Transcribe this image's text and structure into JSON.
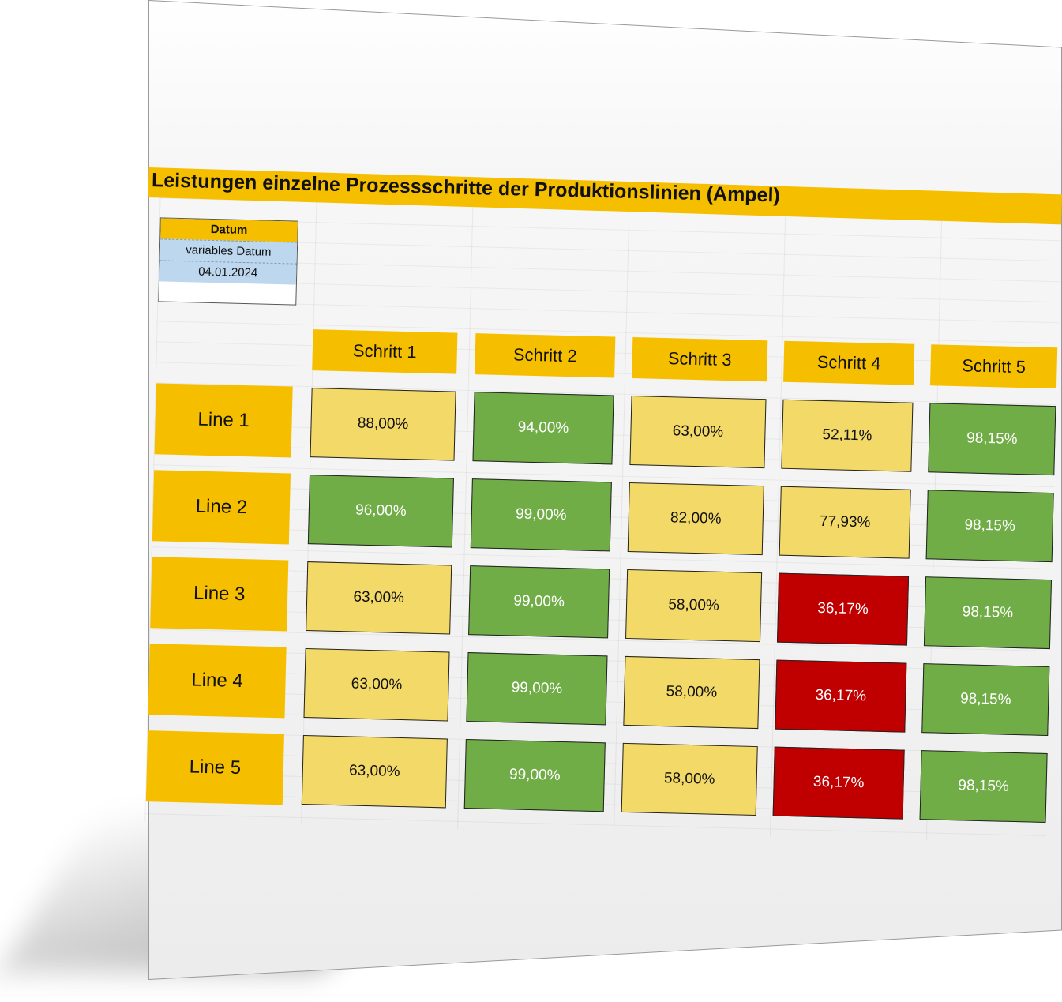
{
  "title": "Leistungen einzelne Prozessschritte der Produktionslinien (Ampel)",
  "date_box": {
    "header": "Datum",
    "label": "variables Datum",
    "value": "04.01.2024"
  },
  "steps": [
    "Schritt 1",
    "Schritt 2",
    "Schritt 3",
    "Schritt 4",
    "Schritt 5"
  ],
  "lines": [
    {
      "label": "Line 1",
      "values": [
        "88,00%",
        "94,00%",
        "63,00%",
        "52,11%",
        "98,15%"
      ],
      "status": [
        "yellow",
        "green",
        "yellow",
        "yellow",
        "green"
      ]
    },
    {
      "label": "Line 2",
      "values": [
        "96,00%",
        "99,00%",
        "82,00%",
        "77,93%",
        "98,15%"
      ],
      "status": [
        "green",
        "green",
        "yellow",
        "yellow",
        "green"
      ]
    },
    {
      "label": "Line 3",
      "values": [
        "63,00%",
        "99,00%",
        "58,00%",
        "36,17%",
        "98,15%"
      ],
      "status": [
        "yellow",
        "green",
        "yellow",
        "red",
        "green"
      ]
    },
    {
      "label": "Line 4",
      "values": [
        "63,00%",
        "99,00%",
        "58,00%",
        "36,17%",
        "98,15%"
      ],
      "status": [
        "yellow",
        "green",
        "yellow",
        "red",
        "green"
      ]
    },
    {
      "label": "Line 5",
      "values": [
        "63,00%",
        "99,00%",
        "58,00%",
        "36,17%",
        "98,15%"
      ],
      "status": [
        "yellow",
        "green",
        "yellow",
        "red",
        "green"
      ]
    }
  ],
  "colors": {
    "header": "#f5bf00",
    "yellow": "#f3d968",
    "green": "#70ad47",
    "red": "#c00000",
    "date_value_bg": "#bdd7ee"
  }
}
